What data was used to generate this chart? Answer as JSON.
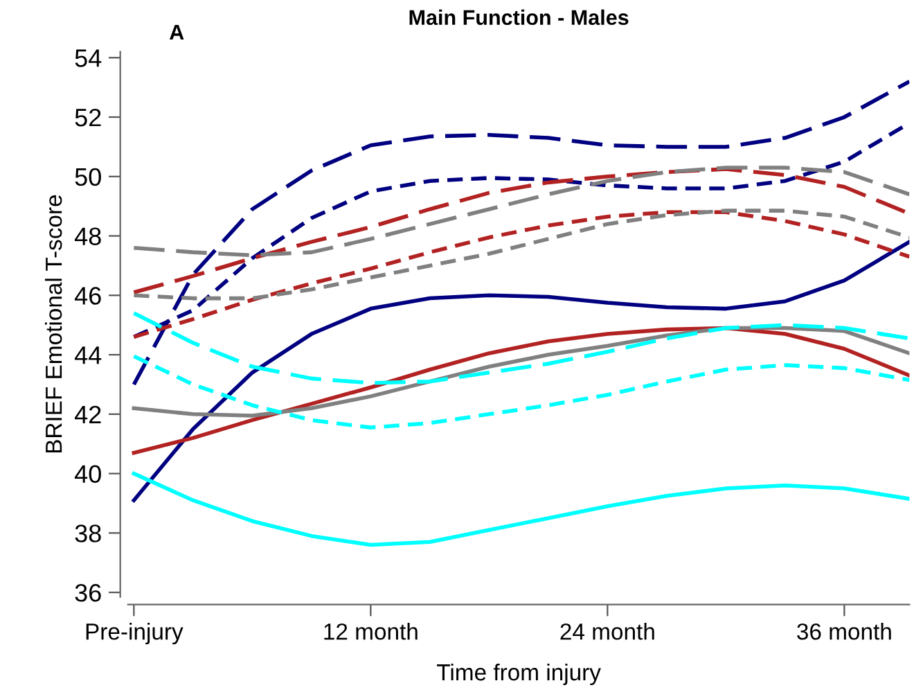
{
  "chart_data": {
    "type": "line",
    "title": "Main Function - Males",
    "xlabel": "Time from injury",
    "ylabel": "BRIEF Emotional T-score",
    "annotations": [
      "A"
    ],
    "x": [
      0,
      3,
      6,
      9,
      12,
      15,
      18,
      21,
      24,
      27,
      30,
      33,
      36,
      39.3
    ],
    "xlim": [
      -0.3,
      39.3
    ],
    "xticks": [
      {
        "value": 0,
        "label": "Pre-injury"
      },
      {
        "value": 12,
        "label": "12 month"
      },
      {
        "value": 24,
        "label": "24 month"
      },
      {
        "value": 36,
        "label": "36 month"
      }
    ],
    "ylim": [
      35.85,
      54.2
    ],
    "yticks": [
      36,
      38,
      40,
      42,
      44,
      46,
      48,
      50,
      52,
      54
    ],
    "grid": false,
    "legend": false,
    "marker": "none",
    "series": [
      {
        "color": "#000080",
        "line_style": "solid",
        "values": [
          39.1,
          41.5,
          43.4,
          44.7,
          45.55,
          45.9,
          46.0,
          45.95,
          45.75,
          45.6,
          45.55,
          45.8,
          46.5,
          47.8
        ]
      },
      {
        "color": "#000080",
        "line_style": "long-dashed",
        "values": [
          43.0,
          46.7,
          48.9,
          50.2,
          51.05,
          51.35,
          51.4,
          51.3,
          51.05,
          51.0,
          51.0,
          51.3,
          52.0,
          53.2
        ]
      },
      {
        "color": "#000080",
        "line_style": "dashed",
        "values": [
          44.6,
          45.5,
          47.25,
          48.6,
          49.5,
          49.85,
          49.95,
          49.9,
          49.7,
          49.6,
          49.6,
          49.85,
          50.5,
          51.8
        ]
      },
      {
        "color": "#b22222",
        "line_style": "solid",
        "values": [
          40.7,
          41.2,
          41.8,
          42.35,
          42.9,
          43.5,
          44.05,
          44.45,
          44.7,
          44.85,
          44.9,
          44.7,
          44.2,
          43.3
        ]
      },
      {
        "color": "#b22222",
        "line_style": "long-dashed",
        "values": [
          46.1,
          46.65,
          47.25,
          47.8,
          48.3,
          48.9,
          49.45,
          49.8,
          50.0,
          50.15,
          50.25,
          50.05,
          49.65,
          48.75
        ]
      },
      {
        "color": "#b22222",
        "line_style": "dashed",
        "values": [
          44.6,
          45.2,
          45.85,
          46.4,
          46.9,
          47.45,
          47.95,
          48.35,
          48.65,
          48.8,
          48.8,
          48.5,
          48.05,
          47.3
        ]
      },
      {
        "color": "#808080",
        "line_style": "solid",
        "values": [
          42.2,
          42.0,
          41.95,
          42.2,
          42.6,
          43.1,
          43.6,
          44.0,
          44.3,
          44.65,
          44.9,
          44.9,
          44.8,
          44.05
        ]
      },
      {
        "color": "#808080",
        "line_style": "long-dashed",
        "values": [
          47.6,
          47.45,
          47.35,
          47.45,
          47.9,
          48.4,
          48.9,
          49.4,
          49.85,
          50.15,
          50.3,
          50.3,
          50.15,
          49.4
        ]
      },
      {
        "color": "#808080",
        "line_style": "dashed",
        "values": [
          46.0,
          45.9,
          45.9,
          46.2,
          46.6,
          47.0,
          47.4,
          47.9,
          48.4,
          48.7,
          48.85,
          48.85,
          48.65,
          47.95
        ]
      },
      {
        "color": "#00ffff",
        "line_style": "solid",
        "values": [
          40.0,
          39.1,
          38.4,
          37.9,
          37.6,
          37.7,
          38.1,
          38.5,
          38.9,
          39.25,
          39.5,
          39.6,
          39.5,
          39.15
        ]
      },
      {
        "color": "#00ffff",
        "line_style": "long-dashed",
        "values": [
          45.4,
          44.4,
          43.6,
          43.2,
          43.05,
          43.1,
          43.4,
          43.7,
          44.1,
          44.55,
          44.9,
          45.0,
          44.9,
          44.55
        ]
      },
      {
        "color": "#00ffff",
        "line_style": "dashed",
        "values": [
          43.95,
          43.0,
          42.3,
          41.8,
          41.55,
          41.7,
          42.0,
          42.3,
          42.65,
          43.1,
          43.5,
          43.65,
          43.55,
          43.15
        ]
      }
    ]
  }
}
